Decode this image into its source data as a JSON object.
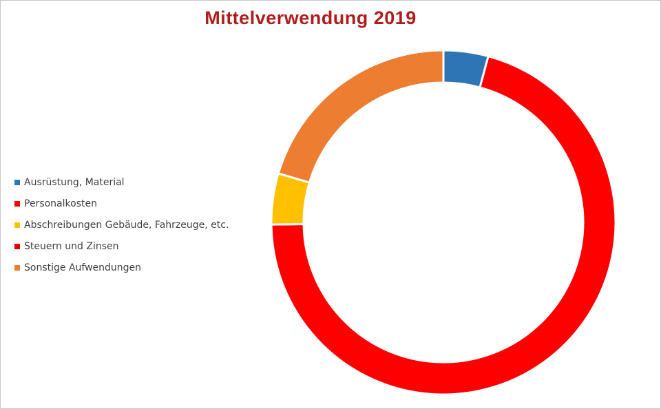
{
  "chart_data": {
    "type": "pie",
    "title": "Mittelverwendung 2019",
    "legend_position": "left",
    "series": [
      {
        "name": "Ausrüstung, Material",
        "value": 4.2,
        "color": "#2e75b6"
      },
      {
        "name": "Personalkosten",
        "value": 70.6,
        "color": "#ff0000"
      },
      {
        "name": "Abschreibungen Gebäude, Fahrzeuge, etc.",
        "value": 4.8,
        "color": "#ffc000"
      },
      {
        "name": "Steuern und Zinsen",
        "value": 0,
        "color": "#e00000"
      },
      {
        "name": "Sonstige Aufwendungen",
        "value": 20.4,
        "color": "#ed7d31"
      }
    ]
  }
}
